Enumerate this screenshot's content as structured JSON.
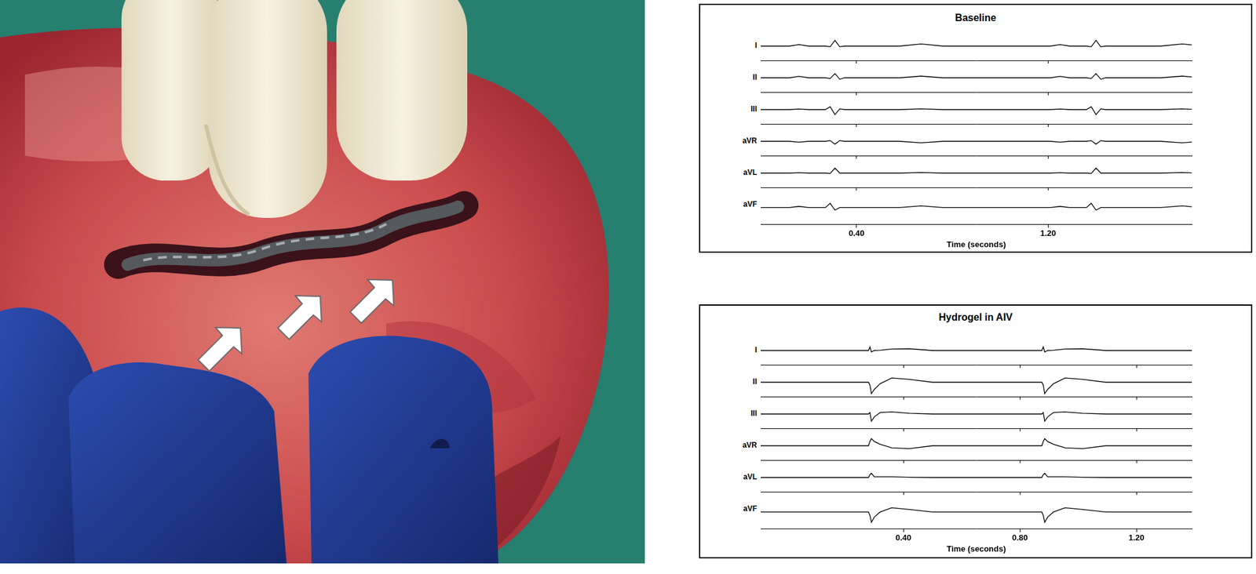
{
  "chart_data": [
    {
      "type": "line",
      "title": "Baseline",
      "x_label": "Time (seconds)",
      "x": [
        0,
        0.12,
        0.16,
        0.2,
        0.27,
        0.29,
        0.31,
        0.33,
        0.35,
        0.4,
        0.58,
        0.67,
        0.76,
        0.9,
        1.21,
        1.25,
        1.29,
        1.36,
        1.38,
        1.4,
        1.42,
        1.44,
        1.49,
        1.67,
        1.76,
        1.8
      ],
      "series": [
        {
          "name": "I",
          "color": "#000000",
          "values": [
            0,
            0,
            0.1,
            0,
            0,
            -0.05,
            0.4,
            -0.05,
            0,
            0,
            0,
            0.15,
            0,
            0,
            0,
            0.1,
            0,
            0,
            -0.05,
            0.4,
            -0.05,
            0,
            0,
            0,
            0.15,
            0.08
          ]
        },
        {
          "name": "II",
          "color": "#000000",
          "values": [
            0,
            0,
            0.1,
            0,
            0,
            -0.05,
            0.3,
            -0.1,
            0,
            0,
            0,
            0.12,
            0,
            0,
            0,
            0.1,
            0,
            0,
            -0.05,
            0.3,
            -0.1,
            0,
            0,
            0,
            0.12,
            0.06
          ]
        },
        {
          "name": "III",
          "color": "#000000",
          "values": [
            0,
            0,
            0.04,
            0,
            0,
            0.2,
            -0.35,
            0.05,
            0,
            0,
            0,
            0.05,
            0,
            0,
            0,
            0.04,
            0,
            0,
            0.2,
            -0.35,
            0.05,
            0,
            0,
            0,
            0.05,
            0.02
          ]
        },
        {
          "name": "aVR",
          "color": "#000000",
          "values": [
            0,
            0,
            -0.06,
            0,
            0,
            0.05,
            -0.2,
            0.05,
            0,
            0,
            0,
            -0.1,
            0,
            0,
            0,
            -0.06,
            0,
            0,
            0.05,
            -0.2,
            0.05,
            0,
            0,
            0,
            -0.1,
            -0.05
          ]
        },
        {
          "name": "aVL",
          "color": "#000000",
          "values": [
            0,
            0,
            0.03,
            0,
            0,
            -0.03,
            0.35,
            0,
            0,
            0,
            0,
            0.04,
            0,
            0,
            0,
            0.03,
            0,
            0,
            -0.03,
            0.35,
            0,
            0,
            0,
            0,
            0.04,
            0.02
          ]
        },
        {
          "name": "aVF",
          "color": "#000000",
          "values": [
            0,
            0,
            0.07,
            0,
            0,
            0.25,
            -0.15,
            0,
            0,
            0,
            0,
            0.1,
            0,
            0,
            0,
            0.07,
            0,
            0,
            0.25,
            -0.15,
            0,
            0,
            0,
            0,
            0.1,
            0.05
          ]
        }
      ],
      "xlim": [
        0,
        1.8
      ],
      "xticks": [
        {
          "value": 0.4,
          "label": "0.40"
        },
        {
          "value": 1.2,
          "label": "1.20"
        }
      ],
      "ylim": [
        -1,
        1
      ],
      "tick_labels": "x"
    },
    {
      "type": "line",
      "title": "Hydrogel in AIV",
      "x_label": "Time (seconds)",
      "x": [
        -0.09,
        0.2,
        0.28,
        0.285,
        0.29,
        0.3,
        0.32,
        0.36,
        0.42,
        0.5,
        0.7,
        0.795,
        0.875,
        0.88,
        0.885,
        0.895,
        0.915,
        0.955,
        1.015,
        1.095,
        1.39
      ],
      "series": [
        {
          "name": "I",
          "color": "#000000",
          "values": [
            0,
            0,
            0,
            0.25,
            -0.1,
            0,
            0.02,
            0.1,
            0.12,
            0,
            0,
            0,
            0,
            0.25,
            -0.1,
            0,
            0.02,
            0.1,
            0.12,
            0,
            0
          ]
        },
        {
          "name": "II",
          "color": "#000000",
          "values": [
            0,
            0,
            0,
            -0.2,
            -0.8,
            -0.5,
            -0.1,
            0.3,
            0.2,
            0,
            0,
            0,
            0,
            -0.2,
            -0.8,
            -0.5,
            -0.1,
            0.3,
            0.2,
            0,
            0
          ]
        },
        {
          "name": "III",
          "color": "#000000",
          "values": [
            0,
            0,
            0,
            0.1,
            -0.5,
            -0.2,
            0.1,
            0.15,
            0.05,
            0,
            0,
            0,
            0,
            0.1,
            -0.5,
            -0.2,
            0.1,
            0.15,
            0.05,
            0,
            0
          ]
        },
        {
          "name": "aVR",
          "color": "#000000",
          "values": [
            0,
            0,
            0,
            0.3,
            0.5,
            0.3,
            0.1,
            -0.15,
            -0.2,
            0,
            0,
            0,
            0,
            0.3,
            0.5,
            0.3,
            0.1,
            -0.15,
            -0.2,
            0,
            0
          ]
        },
        {
          "name": "aVL",
          "color": "#000000",
          "values": [
            0,
            0,
            0,
            0.2,
            0.3,
            0.05,
            0.05,
            0.05,
            0.02,
            0,
            0,
            0,
            0,
            0.2,
            0.3,
            0.05,
            0.05,
            0.05,
            0.02,
            0,
            0
          ]
        },
        {
          "name": "aVF",
          "color": "#000000",
          "values": [
            0,
            0,
            0,
            -0.2,
            -0.6,
            -0.3,
            0,
            0.25,
            0.15,
            0,
            0,
            0,
            0,
            -0.2,
            -0.6,
            -0.3,
            0,
            0.25,
            0.15,
            0,
            0
          ]
        }
      ],
      "xlim": [
        -0.09,
        1.39
      ],
      "xticks": [
        {
          "value": 0.4,
          "label": "0.40"
        },
        {
          "value": 0.8,
          "label": "0.80"
        },
        {
          "value": 1.2,
          "label": "1.20"
        }
      ],
      "ylim": [
        -1,
        1
      ],
      "tick_labels": "x"
    }
  ]
}
